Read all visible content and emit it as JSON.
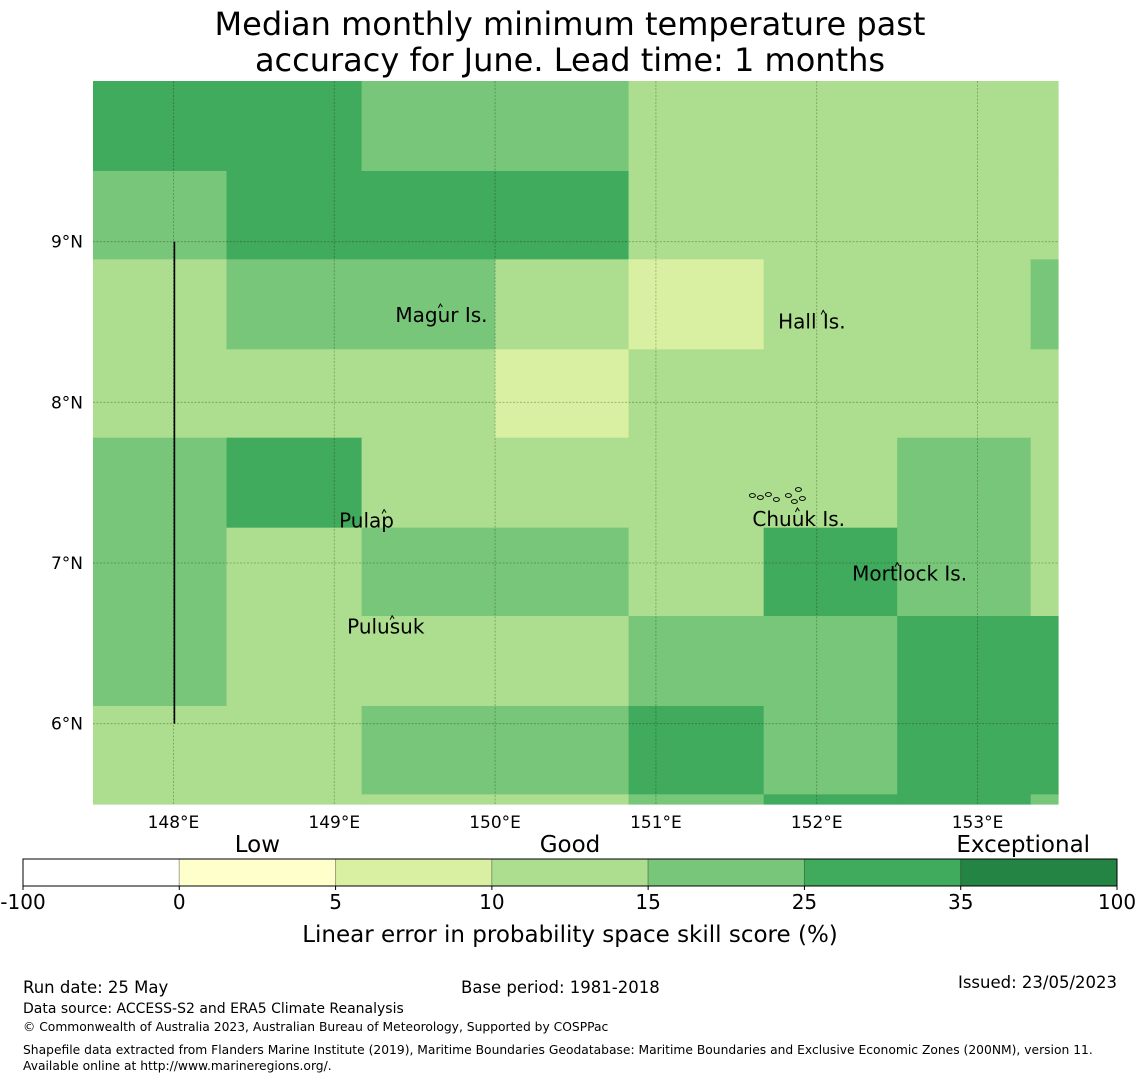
{
  "title_lines": [
    "Median monthly minimum temperature past",
    "accuracy for June. Lead time: 1 months"
  ],
  "map": {
    "lon_range": [
      147.5,
      153.5
    ],
    "lat_range": [
      5.5,
      10.0
    ],
    "lon_ticks": [
      {
        "value": 148,
        "label": "148°E"
      },
      {
        "value": 149,
        "label": "149°E"
      },
      {
        "value": 150,
        "label": "150°E"
      },
      {
        "value": 151,
        "label": "151°E"
      },
      {
        "value": 152,
        "label": "152°E"
      },
      {
        "value": 153,
        "label": "153°E"
      }
    ],
    "lat_ticks": [
      {
        "value": 9,
        "label": "9°N"
      },
      {
        "value": 8,
        "label": "8°N"
      },
      {
        "value": 7,
        "label": "7°N"
      },
      {
        "value": 6,
        "label": "6°N"
      }
    ],
    "grid": true,
    "cell_lon_edges": [
      147.5,
      148.33,
      149.17,
      150.0,
      150.83,
      151.67,
      152.5,
      153.33,
      153.5
    ],
    "cell_lat_edges": [
      10.0,
      9.44,
      8.89,
      8.33,
      7.78,
      7.22,
      6.67,
      6.11,
      5.56,
      5.5
    ],
    "skill_class_grid": [
      [
        5,
        5,
        4,
        4,
        3,
        3,
        3,
        3
      ],
      [
        4,
        5,
        5,
        5,
        3,
        3,
        3,
        3
      ],
      [
        3,
        4,
        4,
        3,
        2,
        3,
        3,
        4
      ],
      [
        3,
        3,
        3,
        2,
        3,
        3,
        3,
        3
      ],
      [
        4,
        5,
        3,
        3,
        3,
        3,
        4,
        3
      ],
      [
        4,
        3,
        4,
        4,
        3,
        5,
        4,
        3
      ],
      [
        4,
        3,
        3,
        3,
        4,
        4,
        5,
        5
      ],
      [
        3,
        3,
        4,
        4,
        5,
        4,
        5,
        5
      ],
      [
        3,
        3,
        3,
        3,
        4,
        5,
        5,
        4
      ]
    ],
    "islands": [
      {
        "name": "Magur Is.",
        "lon": 149.38,
        "lat": 8.5
      },
      {
        "name": "Hall Is.",
        "lon": 151.76,
        "lat": 8.46
      },
      {
        "name": "Pulap",
        "lon": 149.03,
        "lat": 7.22
      },
      {
        "name": "Chuuk Is.",
        "lon": 151.6,
        "lat": 7.23
      },
      {
        "name": "Mortlock Is.",
        "lon": 152.22,
        "lat": 6.89
      },
      {
        "name": "Pulusuk",
        "lon": 149.08,
        "lat": 6.56
      }
    ],
    "boundary_line": {
      "lon": 148.0,
      "lat_from": 6.0,
      "lat_to": 9.0
    }
  },
  "legend": {
    "categories": [
      "Low",
      "Good",
      "Exceptional"
    ],
    "boundaries": [
      "-100",
      "0",
      "5",
      "10",
      "15",
      "25",
      "35",
      "100"
    ],
    "colors": [
      "#ffffff",
      "#ffffcc",
      "#d9f0a3",
      "#addd8e",
      "#78c679",
      "#41ab5d",
      "#238443"
    ],
    "label": "Linear error in probability space skill score (%)"
  },
  "footer": {
    "run_date": "Run date: 25 May",
    "base_period": "Base period: 1981-2018",
    "issued": "Issued: 23/05/2023",
    "data_source": "Data source: ACCESS-S2 and ERA5 Climate Reanalysis",
    "copyright": "© Commonwealth of Australia 2023, Australian Bureau of Meteorology, Supported by COSPPac",
    "shapefile": "Shapefile data extracted from Flanders Marine Institute (2019), Maritime Boundaries Geodatabase: Maritime Boundaries and Exclusive Economic Zones (200NM), version 11. Available online at http://www.marineregions.org/."
  }
}
